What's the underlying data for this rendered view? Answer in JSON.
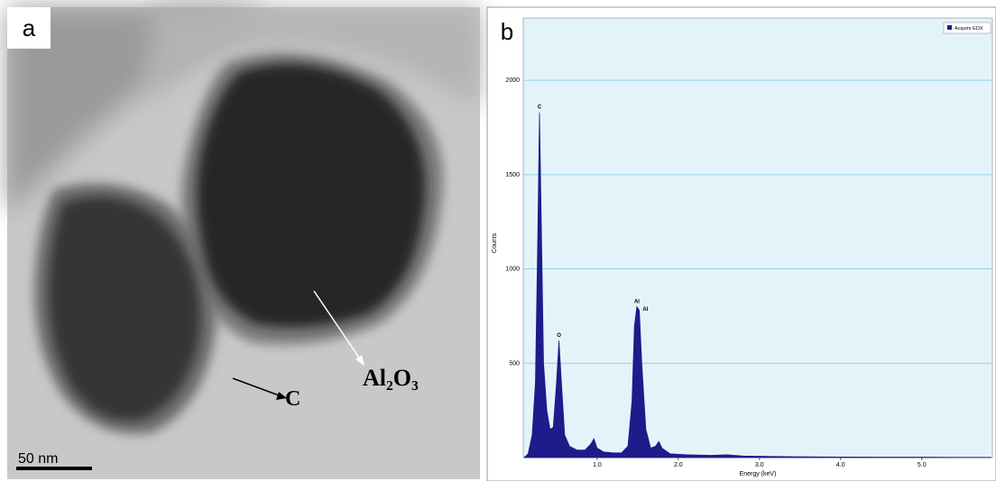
{
  "panel_a": {
    "panel_label": "a",
    "annotations": [
      "Al₂O₃",
      "C"
    ],
    "scale_bar": "50 nm"
  },
  "chart_data": {
    "type": "line",
    "panel_label": "b",
    "x_label": "Energy (keV)",
    "y_label": "Counts",
    "x": [
      0.1,
      0.15,
      0.2,
      0.24,
      0.27,
      0.29,
      0.31,
      0.34,
      0.38,
      0.42,
      0.46,
      0.5,
      0.53,
      0.56,
      0.6,
      0.66,
      0.75,
      0.85,
      0.92,
      0.96,
      1.0,
      1.08,
      1.2,
      1.3,
      1.38,
      1.43,
      1.46,
      1.49,
      1.52,
      1.55,
      1.6,
      1.66,
      1.72,
      1.76,
      1.8,
      1.9,
      2.1,
      2.4,
      2.6,
      2.8,
      3.2,
      3.6,
      4.0,
      4.5,
      5.0,
      5.5,
      5.85
    ],
    "series": [
      {
        "name": "Acquire EDX",
        "color": "#1c1c8a",
        "values": [
          0,
          20,
          120,
          400,
          1200,
          1830,
          1300,
          500,
          250,
          150,
          160,
          400,
          620,
          400,
          120,
          60,
          40,
          40,
          70,
          100,
          50,
          30,
          25,
          25,
          60,
          300,
          700,
          800,
          780,
          500,
          150,
          50,
          60,
          85,
          50,
          20,
          15,
          12,
          15,
          8,
          6,
          4,
          3,
          2,
          2,
          1,
          1
        ]
      }
    ],
    "annotations": [
      {
        "text": "C",
        "x": 0.29,
        "y": 1830
      },
      {
        "text": "O",
        "x": 0.53,
        "y": 620
      },
      {
        "text": "Al",
        "x": 1.49,
        "y": 800
      },
      {
        "text": "Al",
        "x": 1.55,
        "y": 760
      }
    ],
    "xlim": [
      0.09,
      5.87
    ],
    "ylim": [
      0,
      2330
    ],
    "xticks": [
      {
        "value": 1,
        "label": "1.0"
      },
      {
        "value": 2,
        "label": "2.0"
      },
      {
        "value": 3,
        "label": "3.0"
      },
      {
        "value": 4,
        "label": "4.0"
      },
      {
        "value": 5,
        "label": "5.0"
      }
    ],
    "yticks": [
      500,
      1000,
      1500,
      2000
    ],
    "grid": true,
    "legend": "top-right",
    "background": "#e4f3fa"
  }
}
